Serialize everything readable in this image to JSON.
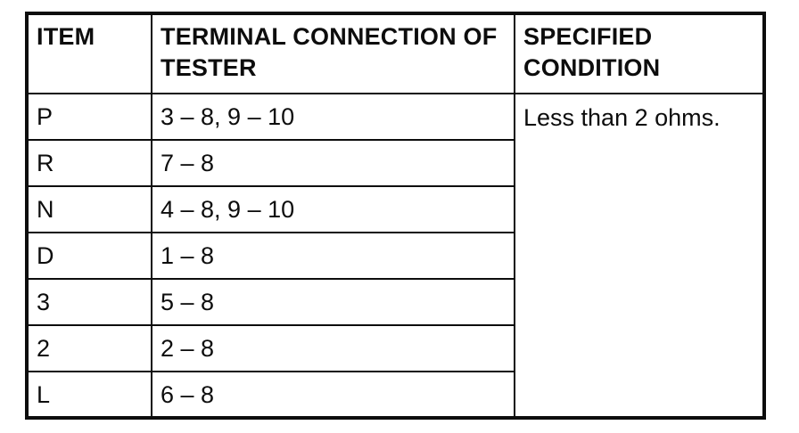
{
  "document": {
    "background_color": "#ffffff",
    "line_color": "#0d0d0d",
    "text_color": "#0d0d0d"
  },
  "table": {
    "columns": [
      {
        "label": "ITEM"
      },
      {
        "label": "TERMINAL CONNECTION OF TESTER"
      },
      {
        "label": "SPECIFIED CONDITION"
      }
    ],
    "rows": [
      {
        "item": "P",
        "connection": "3 – 8, 9 – 10"
      },
      {
        "item": "R",
        "connection": "7 – 8"
      },
      {
        "item": "N",
        "connection": "4 – 8, 9 – 10"
      },
      {
        "item": "D",
        "connection": "1 – 8"
      },
      {
        "item": "3",
        "connection": "5 – 8"
      },
      {
        "item": "2",
        "connection": "2 – 8"
      },
      {
        "item": "L",
        "connection": "6 – 8"
      }
    ],
    "specified_condition": "Less than 2 ohms."
  }
}
